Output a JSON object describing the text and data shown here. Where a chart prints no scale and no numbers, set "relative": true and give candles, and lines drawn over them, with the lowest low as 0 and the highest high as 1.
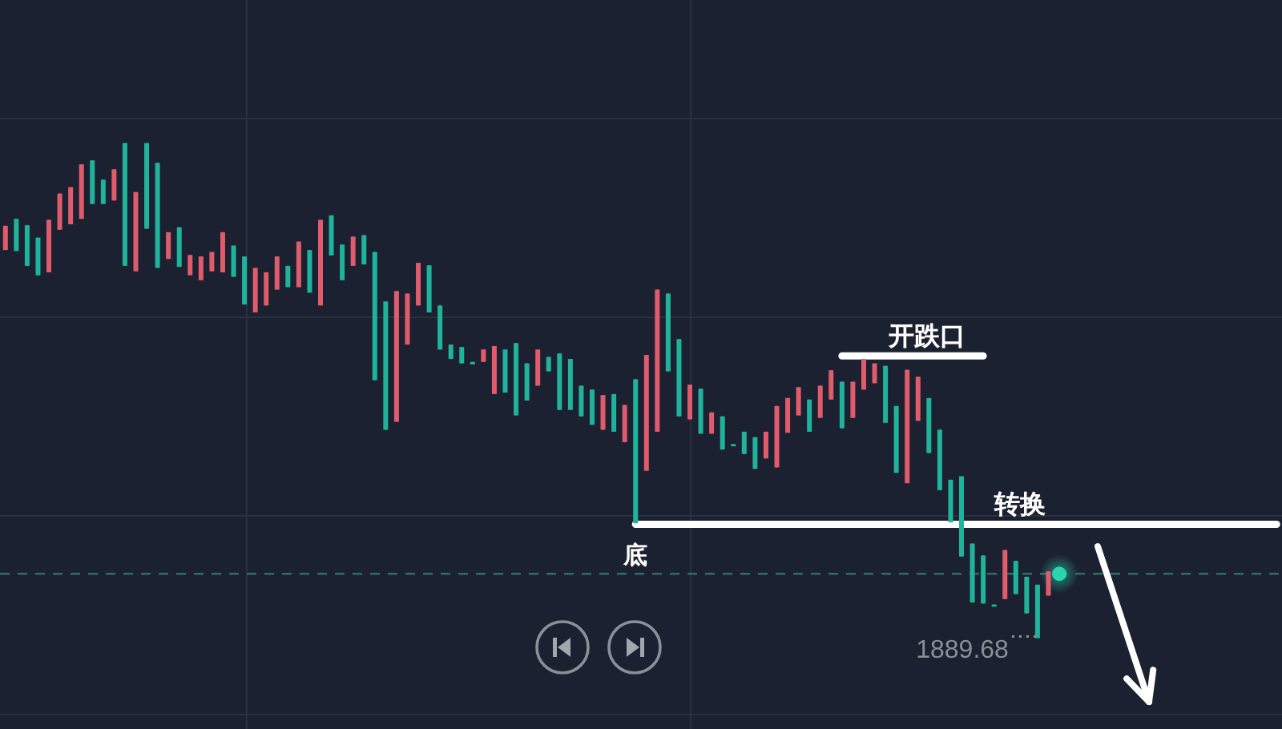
{
  "chart_data": {
    "type": "candlestick",
    "relative": true,
    "grid": true,
    "categories": [
      null,
      null,
      null,
      null,
      null,
      null,
      null,
      null,
      null,
      null,
      null,
      null,
      null,
      null,
      null,
      null,
      null,
      null,
      null,
      null,
      null,
      null,
      null,
      null,
      null,
      null,
      null,
      null,
      null,
      null,
      null,
      null,
      null,
      null,
      null,
      null,
      null,
      null,
      null,
      null,
      null,
      null,
      null,
      null,
      null,
      null,
      null,
      null,
      null,
      null,
      null,
      null,
      null,
      null,
      null,
      null,
      null,
      null,
      null,
      null,
      null,
      null,
      null,
      null,
      null,
      null,
      null,
      null,
      null,
      null,
      null,
      null,
      null,
      null,
      null,
      null,
      null,
      null,
      null,
      null,
      null,
      null,
      null,
      null,
      null,
      null,
      null,
      null,
      null,
      null,
      null,
      null,
      null,
      null,
      null,
      null,
      null,
      null,
      null,
      null,
      null,
      null,
      null,
      null,
      null,
      null,
      null,
      null,
      null,
      null,
      null,
      null,
      null,
      null,
      null,
      null,
      null,
      null
    ],
    "ohlc": [
      [
        0.784,
        0.833,
        0.784,
        0.833
      ],
      [
        0.847,
        0.847,
        0.782,
        0.782
      ],
      [
        0.834,
        0.834,
        0.752,
        0.752
      ],
      [
        0.809,
        0.809,
        0.733,
        0.733
      ],
      [
        0.739,
        0.845,
        0.739,
        0.845
      ],
      [
        0.825,
        0.898,
        0.825,
        0.898
      ],
      [
        0.836,
        0.911,
        0.836,
        0.911
      ],
      [
        0.847,
        0.957,
        0.847,
        0.957
      ],
      [
        0.965,
        0.965,
        0.877,
        0.877
      ],
      [
        0.926,
        0.926,
        0.877,
        0.877
      ],
      [
        0.884,
        0.947,
        0.884,
        0.947
      ],
      [
        1,
        1,
        0.752,
        0.752
      ],
      [
        0.741,
        0.901,
        0.741,
        0.901
      ],
      [
        1,
        1,
        0.827,
        0.827
      ],
      [
        0.96,
        0.96,
        0.748,
        0.748
      ],
      [
        0.766,
        0.82,
        0.766,
        0.82
      ],
      [
        0.83,
        0.83,
        0.75,
        0.75
      ],
      [
        0.733,
        0.774,
        0.733,
        0.774
      ],
      [
        0.723,
        0.771,
        0.723,
        0.771
      ],
      [
        0.741,
        0.78,
        0.741,
        0.78
      ],
      [
        0.739,
        0.82,
        0.739,
        0.82
      ],
      [
        0.793,
        0.793,
        0.73,
        0.73
      ],
      [
        0.771,
        0.771,
        0.674,
        0.674
      ],
      [
        0.658,
        0.748,
        0.658,
        0.748
      ],
      [
        0.672,
        0.739,
        0.672,
        0.739
      ],
      [
        0.704,
        0.771,
        0.704,
        0.771
      ],
      [
        0.752,
        0.752,
        0.709,
        0.709
      ],
      [
        0.709,
        0.801,
        0.709,
        0.801
      ],
      [
        0.784,
        0.784,
        0.698,
        0.698
      ],
      [
        0.672,
        0.845,
        0.672,
        0.845
      ],
      [
        0.854,
        0.854,
        0.773,
        0.773
      ],
      [
        0.795,
        0.795,
        0.723,
        0.723
      ],
      [
        0.752,
        0.811,
        0.752,
        0.811
      ],
      [
        0.814,
        0.814,
        0.755,
        0.755
      ],
      [
        0.78,
        0.78,
        0.521,
        0.521
      ],
      [
        0.68,
        0.68,
        0.421,
        0.421
      ],
      [
        0.437,
        0.701,
        0.437,
        0.701
      ],
      [
        0.593,
        0.696,
        0.593,
        0.696
      ],
      [
        0.672,
        0.758,
        0.672,
        0.758
      ],
      [
        0.753,
        0.753,
        0.658,
        0.658
      ],
      [
        0.672,
        0.672,
        0.583,
        0.583
      ],
      [
        0.593,
        0.593,
        0.564,
        0.564
      ],
      [
        0.588,
        0.588,
        0.555,
        0.555
      ],
      [
        0.558,
        0.558,
        0.553,
        0.553
      ],
      [
        0.558,
        0.583,
        0.558,
        0.583
      ],
      [
        0.493,
        0.59,
        0.493,
        0.59
      ],
      [
        0.583,
        0.583,
        0.496,
        0.496
      ],
      [
        0.596,
        0.596,
        0.45,
        0.45
      ],
      [
        0.555,
        0.555,
        0.48,
        0.48
      ],
      [
        0.51,
        0.583,
        0.51,
        0.583
      ],
      [
        0.568,
        0.568,
        0.539,
        0.539
      ],
      [
        0.575,
        0.575,
        0.461,
        0.461
      ],
      [
        0.564,
        0.564,
        0.461,
        0.461
      ],
      [
        0.51,
        0.51,
        0.448,
        0.448
      ],
      [
        0.502,
        0.502,
        0.431,
        0.431
      ],
      [
        0.421,
        0.491,
        0.421,
        0.491
      ],
      [
        0.493,
        0.493,
        0.417,
        0.417
      ],
      [
        0.396,
        0.471,
        0.396,
        0.471
      ],
      [
        0.523,
        0.523,
        0.232,
        0.232
      ],
      [
        0.338,
        0.572,
        0.338,
        0.572
      ],
      [
        0.417,
        0.704,
        0.417,
        0.704
      ],
      [
        0.696,
        0.696,
        0.539,
        0.539
      ],
      [
        0.604,
        0.604,
        0.448,
        0.448
      ],
      [
        0.442,
        0.512,
        0.442,
        0.512
      ],
      [
        0.504,
        0.504,
        0.413,
        0.413
      ],
      [
        0.413,
        0.456,
        0.413,
        0.456
      ],
      [
        0.448,
        0.448,
        0.381,
        0.381
      ],
      [
        0.392,
        0.392,
        0.388,
        0.388
      ],
      [
        0.417,
        0.417,
        0.372,
        0.372
      ],
      [
        0.406,
        0.406,
        0.342,
        0.342
      ],
      [
        0.363,
        0.417,
        0.363,
        0.417
      ],
      [
        0.345,
        0.469,
        0.345,
        0.469
      ],
      [
        0.415,
        0.485,
        0.415,
        0.485
      ],
      [
        0.45,
        0.507,
        0.45,
        0.507
      ],
      [
        0.482,
        0.482,
        0.417,
        0.417
      ],
      [
        0.445,
        0.51,
        0.445,
        0.51
      ],
      [
        0.482,
        0.541,
        0.482,
        0.541
      ],
      [
        0.518,
        0.518,
        0.424,
        0.424
      ],
      [
        0.445,
        0.518,
        0.445,
        0.518
      ],
      [
        0.502,
        0.564,
        0.502,
        0.564
      ],
      [
        0.515,
        0.555,
        0.515,
        0.555
      ],
      [
        0.55,
        0.55,
        0.435,
        0.435
      ],
      [
        0.469,
        0.469,
        0.334,
        0.334
      ],
      [
        0.313,
        0.542,
        0.313,
        0.542
      ],
      [
        0.439,
        0.528,
        0.439,
        0.528
      ],
      [
        0.485,
        0.485,
        0.374,
        0.374
      ],
      [
        0.421,
        0.421,
        0.299,
        0.299
      ],
      [
        0.32,
        0.32,
        0.234,
        0.234
      ],
      [
        0.327,
        0.327,
        0.165,
        0.165
      ],
      [
        0.191,
        0.191,
        0.072,
        0.072
      ],
      [
        0.167,
        0.167,
        0.07,
        0.07
      ],
      [
        0.068,
        0.068,
        0.065,
        0.065
      ],
      [
        0.079,
        0.178,
        0.079,
        0.178
      ],
      [
        0.156,
        0.156,
        0.089,
        0.089
      ],
      [
        0.124,
        0.124,
        0.05,
        0.05
      ],
      [
        0.108,
        0.108,
        0,
        0
      ],
      [
        0.086,
        0.135,
        0.086,
        0.135
      ],
      null,
      null,
      null,
      null,
      null,
      null,
      null,
      null,
      null,
      null,
      null,
      null,
      null,
      null,
      null,
      null,
      null,
      null,
      null,
      null,
      null
    ],
    "colors": [
      "#e05b6b",
      "#1fb39b",
      "#1fb39b",
      "#1fb39b",
      "#e05b6b",
      "#e05b6b",
      "#e05b6b",
      "#e05b6b",
      "#1fb39b",
      "#1fb39b",
      "#e05b6b",
      "#1fb39b",
      "#e05b6b",
      "#1fb39b",
      "#1fb39b",
      "#e05b6b",
      "#1fb39b",
      "#e05b6b",
      "#e05b6b",
      "#e05b6b",
      "#e05b6b",
      "#1fb39b",
      "#1fb39b",
      "#e05b6b",
      "#e05b6b",
      "#e05b6b",
      "#1fb39b",
      "#e05b6b",
      "#1fb39b",
      "#e05b6b",
      "#1fb39b",
      "#1fb39b",
      "#e05b6b",
      "#1fb39b",
      "#1fb39b",
      "#1fb39b",
      "#e05b6b",
      "#e05b6b",
      "#e05b6b",
      "#1fb39b",
      "#1fb39b",
      "#1fb39b",
      "#1fb39b",
      "#1fb39b",
      "#e05b6b",
      "#e05b6b",
      "#1fb39b",
      "#1fb39b",
      "#1fb39b",
      "#e05b6b",
      "#1fb39b",
      "#1fb39b",
      "#1fb39b",
      "#1fb39b",
      "#1fb39b",
      "#e05b6b",
      "#1fb39b",
      "#e05b6b",
      "#1fb39b",
      "#e05b6b",
      "#e05b6b",
      "#1fb39b",
      "#1fb39b",
      "#e05b6b",
      "#1fb39b",
      "#e05b6b",
      "#1fb39b",
      "#1fb39b",
      "#1fb39b",
      "#1fb39b",
      "#e05b6b",
      "#e05b6b",
      "#e05b6b",
      "#e05b6b",
      "#1fb39b",
      "#e05b6b",
      "#e05b6b",
      "#1fb39b",
      "#e05b6b",
      "#e05b6b",
      "#e05b6b",
      "#1fb39b",
      "#1fb39b",
      "#e05b6b",
      "#e05b6b",
      "#1fb39b",
      "#1fb39b",
      "#1fb39b",
      "#1fb39b",
      "#1fb39b",
      "#1fb39b",
      "#1fb39b",
      "#e05b6b",
      "#1fb39b",
      "#1fb39b",
      "#1fb39b",
      "#e05b6b",
      null,
      null,
      null,
      null,
      null,
      null,
      null,
      null,
      null,
      null,
      null,
      null,
      null,
      null,
      null,
      null,
      null,
      null,
      null,
      null,
      null
    ],
    "series": [
      {
        "type": "line",
        "name": "开跌口",
        "color": "#ffffff",
        "values": [
          null,
          null,
          null,
          null,
          null,
          null,
          null,
          null,
          null,
          null,
          null,
          null,
          null,
          null,
          null,
          null,
          null,
          null,
          null,
          null,
          null,
          null,
          null,
          null,
          null,
          null,
          null,
          null,
          null,
          null,
          null,
          null,
          null,
          null,
          null,
          null,
          null,
          null,
          null,
          null,
          null,
          null,
          null,
          null,
          null,
          null,
          null,
          null,
          null,
          null,
          null,
          null,
          null,
          null,
          null,
          null,
          null,
          null,
          null,
          null,
          null,
          null,
          null,
          null,
          null,
          null,
          null,
          null,
          null,
          null,
          null,
          null,
          null,
          null,
          null,
          null,
          null,
          0.57,
          0.57,
          0.57,
          0.57,
          0.57,
          0.57,
          0.57,
          0.57,
          0.57,
          0.57,
          0.57,
          0.57,
          0.57,
          0.57,
          null,
          null,
          null,
          null,
          null,
          null,
          null,
          null,
          null,
          null,
          null,
          null,
          null,
          null,
          null,
          null,
          null,
          null,
          null,
          null,
          null,
          null,
          null,
          null,
          null,
          null,
          null
        ]
      },
      {
        "type": "line",
        "name": "转换",
        "color": "#ffffff",
        "values": [
          null,
          null,
          null,
          null,
          null,
          null,
          null,
          null,
          null,
          null,
          null,
          null,
          null,
          null,
          null,
          null,
          null,
          null,
          null,
          null,
          null,
          null,
          null,
          null,
          null,
          null,
          null,
          null,
          null,
          null,
          null,
          null,
          null,
          null,
          null,
          null,
          null,
          null,
          null,
          null,
          null,
          null,
          null,
          null,
          null,
          null,
          null,
          null,
          null,
          null,
          null,
          null,
          null,
          null,
          null,
          null,
          null,
          null,
          0.23,
          0.23,
          0.23,
          0.23,
          0.23,
          0.23,
          0.23,
          0.23,
          0.23,
          0.23,
          0.23,
          0.23,
          0.23,
          0.23,
          0.23,
          0.23,
          0.23,
          0.23,
          0.23,
          0.23,
          0.23,
          0.23,
          0.23,
          0.23,
          0.23,
          0.23,
          0.23,
          0.23,
          0.23,
          0.23,
          0.23,
          0.23,
          0.23,
          0.23,
          0.23,
          0.23,
          0.23,
          0.23,
          0.23,
          0.23,
          0.23,
          0.23,
          0.23,
          0.23,
          0.23,
          0.23,
          0.23,
          0.23,
          0.23,
          0.23,
          0.23,
          0.23,
          0.23,
          0.23,
          0.23,
          0.23,
          0.23,
          0.23,
          0.23,
          0.23
        ]
      },
      {
        "type": "scatter",
        "color": "#2ad6b0",
        "values": [
          null,
          null,
          null,
          null,
          null,
          null,
          null,
          null,
          null,
          null,
          null,
          null,
          null,
          null,
          null,
          null,
          null,
          null,
          null,
          null,
          null,
          null,
          null,
          null,
          null,
          null,
          null,
          null,
          null,
          null,
          null,
          null,
          null,
          null,
          null,
          null,
          null,
          null,
          null,
          null,
          null,
          null,
          null,
          null,
          null,
          null,
          null,
          null,
          null,
          null,
          null,
          null,
          null,
          null,
          null,
          null,
          null,
          null,
          null,
          null,
          null,
          null,
          null,
          null,
          null,
          null,
          null,
          null,
          null,
          null,
          null,
          null,
          null,
          null,
          null,
          null,
          null,
          null,
          null,
          null,
          null,
          null,
          null,
          null,
          null,
          null,
          null,
          null,
          null,
          null,
          null,
          null,
          null,
          null,
          null,
          null,
          null,
          0.13,
          null,
          null,
          null,
          null,
          null,
          null,
          null,
          null,
          null,
          null,
          null,
          null,
          null,
          null,
          null,
          null,
          null,
          null,
          null,
          null
        ]
      }
    ],
    "ref_lines": [
      {
        "axis": "y",
        "value": 0.13,
        "color": "#2e6e6a",
        "line_style": "dashed"
      }
    ],
    "annotations": [
      {
        "text": "底",
        "y": 0.232
      },
      "1889.68"
    ]
  }
}
